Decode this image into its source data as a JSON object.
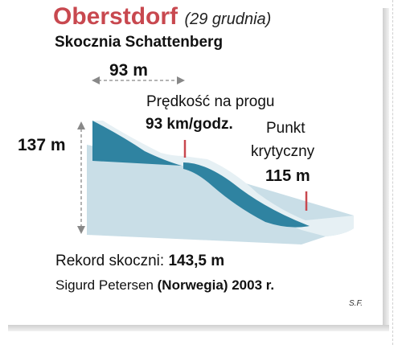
{
  "title": {
    "city": "Oberstdorf",
    "date": "(29 grudnia)"
  },
  "subtitle": "Skocznia Schattenberg",
  "dimensions": {
    "width_label": "93 m",
    "height_label": "137 m"
  },
  "takeoff": {
    "label": "Prędkość na progu",
    "value": "93 km/godz."
  },
  "k_point": {
    "label_line1": "Punkt",
    "label_line2": "krytyczny",
    "value": "115 m"
  },
  "record": {
    "label": "Rekord skoczni:",
    "value": "143,5 m",
    "holder_name": "Sigurd Petersen",
    "holder_country": "(Norwegia) 2003 r."
  },
  "credit": "S.F.",
  "colors": {
    "title": "#c8484f",
    "hill_light": "#c9dee7",
    "hill_dark": "#2f83a1",
    "marker": "#c8484f"
  }
}
